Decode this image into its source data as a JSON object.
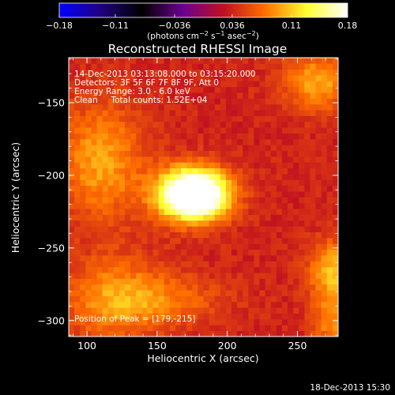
{
  "chart_data": {
    "type": "heatmap",
    "title": "Reconstructed RHESSI Image",
    "xlabel": "Heliocentric X (arcsec)",
    "ylabel": "Heliocentric Y (arcsec)",
    "xlim": [
      87,
      279
    ],
    "ylim": [
      -311,
      -119
    ],
    "x_ticks": [
      {
        "value": 100,
        "label": "100"
      },
      {
        "value": 150,
        "label": "150"
      },
      {
        "value": 200,
        "label": "200"
      },
      {
        "value": 250,
        "label": "250"
      }
    ],
    "y_ticks": [
      {
        "value": -150,
        "label": "−150"
      },
      {
        "value": -200,
        "label": "−200"
      },
      {
        "value": -250,
        "label": "−250"
      },
      {
        "value": -300,
        "label": "−300"
      }
    ],
    "annotations": [
      "14-Dec-2013 03:13:08.000 to 03:15:20.000",
      "Detectors: 3F 5F 6F 7F 8F 9F, Att 0",
      "Energy Range: 3.0 - 6.0 keV",
      "Clean     Total counts: 1.52E+04"
    ],
    "peak_label": "Position of Peak = [179,-215]",
    "peak": {
      "x": 179,
      "y": -215
    },
    "grid": false,
    "colorbar": {
      "min": -0.18,
      "max": 0.18,
      "ticks": [
        {
          "value": -0.18,
          "label": "−0.18"
        },
        {
          "value": -0.11,
          "label": "−0.11"
        },
        {
          "value": -0.036,
          "label": "−0.036"
        },
        {
          "value": 0.036,
          "label": "0.036"
        },
        {
          "value": 0.11,
          "label": "0.11"
        },
        {
          "value": 0.18,
          "label": "0.18"
        }
      ],
      "label_parts": {
        "prefix": "(photons cm",
        "exp1": "−2",
        "mid1": " s",
        "exp2": "−1",
        "mid2": " asec",
        "exp3": "−2",
        "suffix": ")"
      },
      "colors": [
        "#0000ff",
        "#200080",
        "#000000",
        "#6a0090",
        "#c01020",
        "#ff7000",
        "#ffff30",
        "#ffffff"
      ]
    },
    "sources": [
      {
        "x": 176,
        "y": -213,
        "sx": 17,
        "sy": 12,
        "amp": 0.24
      },
      {
        "x": 110,
        "y": -190,
        "sx": 22,
        "sy": 28,
        "amp": 0.06
      },
      {
        "x": 120,
        "y": -285,
        "sx": 26,
        "sy": 20,
        "amp": 0.055
      },
      {
        "x": 265,
        "y": -135,
        "sx": 18,
        "sy": 14,
        "amp": 0.06
      },
      {
        "x": 275,
        "y": -265,
        "sx": 12,
        "sy": 14,
        "amp": 0.07
      },
      {
        "x": 275,
        "y": -300,
        "sx": 10,
        "sy": 14,
        "amp": 0.05
      },
      {
        "x": 160,
        "y": -285,
        "sx": 30,
        "sy": 12,
        "amp": 0.03
      }
    ],
    "background_level": 0.036
  },
  "footer": {
    "date_stamp": "18-Dec-2013 15:30"
  }
}
